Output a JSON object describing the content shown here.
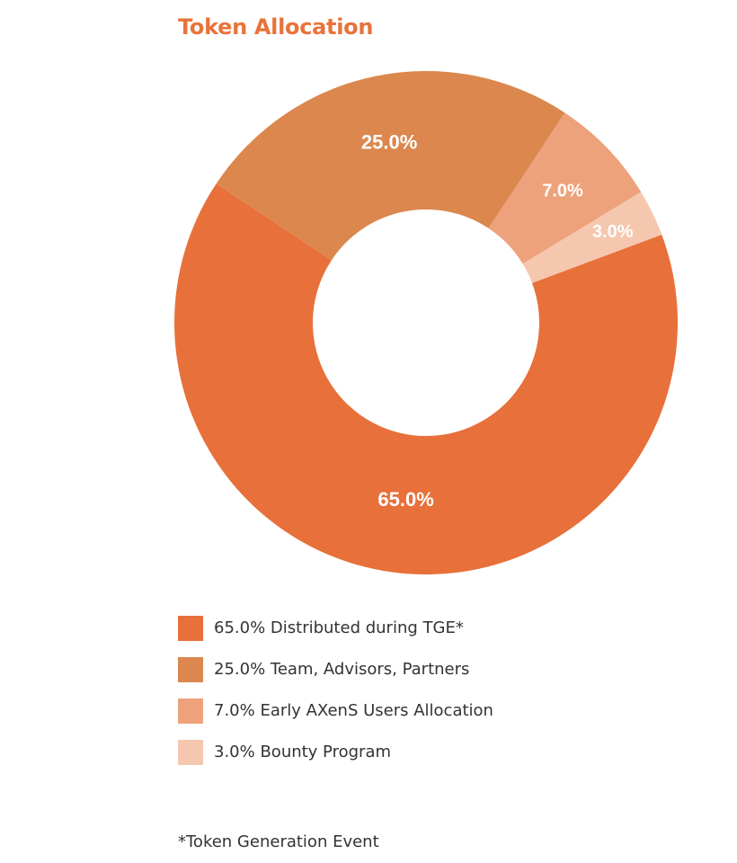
{
  "chart_data": {
    "type": "pie",
    "title": "Token Allocation",
    "donut": true,
    "slices": [
      {
        "label": "65.0% Distributed during TGE*",
        "value": 65.0,
        "value_label": "65.0%",
        "color": "#e8703a"
      },
      {
        "label": "25.0% Team, Advisors, Partners",
        "value": 25.0,
        "value_label": "25.0%",
        "color": "#db874e"
      },
      {
        "label": "7.0% Early AXenS Users Allocation",
        "value": 7.0,
        "value_label": "7.0%",
        "color": "#eea27b"
      },
      {
        "label": "3.0% Bounty Program",
        "value": 3.0,
        "value_label": "3.0%",
        "color": "#f5c7ae"
      }
    ],
    "legend_position": "bottom-left"
  },
  "footnote": "*Token Generation Event"
}
